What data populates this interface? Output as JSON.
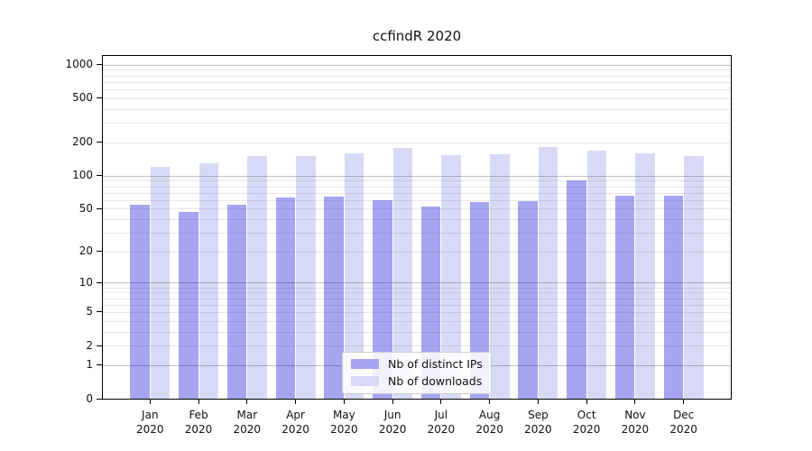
{
  "title": "ccfindR 2020",
  "chart_data": {
    "type": "bar",
    "title": "ccfindR 2020",
    "scale": "log1p",
    "grid": true,
    "legend_position": "inside-bottom-center",
    "categories": [
      "Jan",
      "Feb",
      "Mar",
      "Apr",
      "May",
      "Jun",
      "Jul",
      "Aug",
      "Sep",
      "Oct",
      "Nov",
      "Dec"
    ],
    "year_label": "2020",
    "yticks": [
      0,
      1,
      2,
      5,
      10,
      20,
      50,
      100,
      200,
      500,
      1000
    ],
    "ylim": [
      0,
      1200
    ],
    "series": [
      {
        "name": "Nb of distinct IPs",
        "color": "#a5a5f2",
        "values": [
          54,
          47,
          54,
          63,
          64,
          60,
          52,
          57,
          59,
          90,
          66,
          66
        ]
      },
      {
        "name": "Nb of downloads",
        "color": "#d9d9f7",
        "values": [
          120,
          129,
          150,
          151,
          160,
          179,
          153,
          157,
          181,
          168,
          159,
          150
        ]
      }
    ]
  }
}
